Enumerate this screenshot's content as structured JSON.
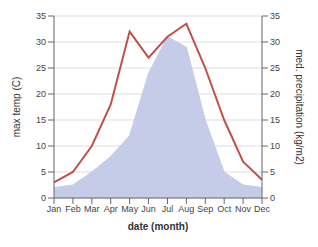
{
  "chart_data": {
    "type": "line",
    "xlabel": "date (month)",
    "ylabel": "max temp (C)",
    "y2label": "med. precipitation (kg/m2)",
    "categories": [
      "Jan",
      "Feb",
      "Mar",
      "Apr",
      "May",
      "Jun",
      "Jul",
      "Aug",
      "Sep",
      "Oct",
      "Nov",
      "Dec"
    ],
    "series": [
      {
        "type": "line",
        "color": "#c0504d",
        "values": [
          3.0,
          5.0,
          10.0,
          18.0,
          32.0,
          27.0,
          31.0,
          33.5,
          25.0,
          15.0,
          7.0,
          3.5
        ]
      },
      {
        "type": "area",
        "axis": "y2",
        "color": "#c5cce8",
        "values": [
          2.0,
          2.5,
          5.0,
          8.0,
          12.0,
          24.0,
          31.0,
          29.0,
          15.0,
          5.0,
          2.5,
          2.0
        ]
      }
    ],
    "ylim": [
      0,
      35
    ],
    "yticks": [
      0,
      5,
      10,
      15,
      20,
      25,
      30,
      35
    ],
    "y2lim": [
      0,
      35
    ],
    "y2ticks": [
      0,
      5,
      10,
      15,
      20,
      25,
      30,
      35
    ],
    "grid": true
  }
}
